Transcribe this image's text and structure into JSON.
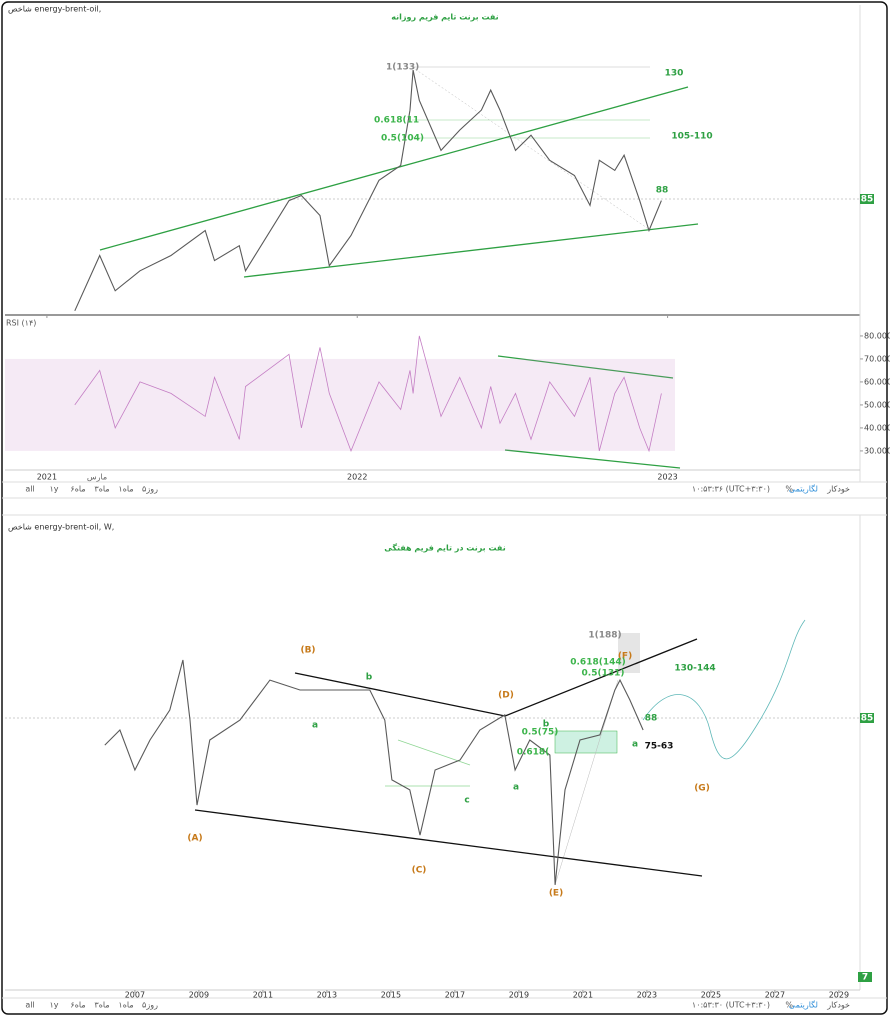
{
  "chart_data": [
    {
      "type": "line",
      "header": "شاخص energy-brent-oil,",
      "title": "نفت برنت تایم فریم روزانه",
      "color": "#5a5a5a",
      "x": [
        2021.09,
        2021.17,
        2021.22,
        2021.3,
        2021.4,
        2021.51,
        2021.54,
        2021.62,
        2021.64,
        2021.78,
        2021.82,
        2021.88,
        2021.91,
        2021.98,
        2022.07,
        2022.14,
        2022.17,
        2022.18,
        2022.2,
        2022.27,
        2022.33,
        2022.4,
        2022.43,
        2022.46,
        2022.51,
        2022.56,
        2022.62,
        2022.7,
        2022.75,
        2022.78,
        2022.83,
        2022.86,
        2022.91,
        2022.94,
        2022.98
      ],
      "values": [
        45.5,
        65.1,
        52.6,
        59.7,
        65.1,
        74.0,
        63.3,
        68.6,
        59.7,
        84.6,
        86.4,
        79.3,
        61.5,
        72.2,
        91.8,
        97.1,
        116.7,
        130.9,
        120.2,
        102.4,
        109.6,
        116.7,
        123.8,
        116.7,
        102.4,
        107.8,
        98.9,
        93.5,
        82.9,
        98.9,
        95.3,
        100.7,
        84.6,
        74.0,
        84.6
      ],
      "xlim": [
        2020.865,
        2023.62
      ],
      "xticks": [
        2021,
        2022,
        2023
      ],
      "ylim": [
        44,
        154
      ],
      "month_label": "مارس",
      "rsi": {
        "label": "RSI (۱۴)",
        "color": "#c47ec4",
        "band": [
          30,
          70
        ],
        "values": [
          50,
          65,
          40,
          60,
          55,
          45,
          62,
          35,
          58,
          72,
          40,
          75,
          55,
          30,
          60,
          48,
          65,
          55,
          80,
          45,
          62,
          40,
          58,
          42,
          55,
          35,
          60,
          45,
          62,
          30,
          55,
          62,
          40,
          30,
          55
        ],
        "ylim": [
          21.7,
          87.8
        ],
        "yticks": [
          {
            "value": 30,
            "label": "30.0000"
          },
          {
            "value": 40,
            "label": "40.0000"
          },
          {
            "value": 50,
            "label": "50.0000"
          },
          {
            "value": 60,
            "label": "60.0000"
          },
          {
            "value": 70,
            "label": "70.0000"
          },
          {
            "value": 80,
            "label": "80.0000"
          }
        ]
      },
      "annotations": [
        {
          "text": "1(133)",
          "color": "#888888"
        },
        {
          "text": "0.618(11",
          "color": "#3cb44b"
        },
        {
          "text": "0.5(104)",
          "color": "#3cb44b"
        },
        {
          "text": "130",
          "color": "#2ea043"
        },
        {
          "text": "105-110",
          "color": "#2ea043"
        },
        {
          "text": "88",
          "color": "#2ea043"
        },
        {
          "text": "85",
          "color": "#ffffff"
        }
      ],
      "toolbar_left": [
        "روز۵",
        "۱ماه",
        "۳ماه",
        "۶ماه",
        "۱y",
        "all"
      ],
      "toolbar_right": [
        "۱۰:۵۳:۳۶ (UTC+۳:۳۰)",
        "%",
        "لگاریتمی",
        "خودکار"
      ]
    },
    {
      "type": "line",
      "header": "شاخص energy-brent-oil, W,",
      "title": "نفت برنت در تایم فریم هفتگی",
      "color": "#5a5a5a",
      "log": true,
      "x": [
        2006.06,
        2006.53,
        2007.0,
        2007.47,
        2008.09,
        2008.5,
        2008.72,
        2008.94,
        2009.34,
        2010.28,
        2011.22,
        2012.16,
        2013.09,
        2014.34,
        2014.81,
        2015.03,
        2015.59,
        2015.91,
        2016.38,
        2017.16,
        2017.78,
        2018.56,
        2018.88,
        2019.34,
        2019.97,
        2020.13,
        2020.44,
        2020.91,
        2021.53,
        2022.0,
        2022.16,
        2022.47,
        2022.88
      ],
      "values": [
        66.2,
        76.4,
        52.3,
        69.5,
        92.3,
        148.3,
        83.9,
        37.5,
        69.5,
        83.9,
        122.6,
        111.6,
        111.6,
        111.6,
        83.9,
        47.6,
        43.3,
        28.2,
        52.3,
        57.5,
        76.4,
        88.1,
        52.3,
        69.5,
        60.3,
        17.6,
        43.3,
        69.5,
        72.9,
        111.6,
        122.6,
        101.5,
        76.4
      ],
      "xlim": [
        2002.94,
        2029.66
      ],
      "xticks": [
        2007,
        2009,
        2011,
        2013,
        2015,
        2017,
        2019,
        2021,
        2023,
        2025,
        2027,
        2029
      ],
      "ylim": [
        6.5,
        586
      ],
      "annotations": [
        {
          "text": "(A)",
          "color": "#c77a1a"
        },
        {
          "text": "(B)",
          "color": "#c77a1a"
        },
        {
          "text": "(C)",
          "color": "#c77a1a"
        },
        {
          "text": "(D)",
          "color": "#c77a1a"
        },
        {
          "text": "(E)",
          "color": "#c77a1a"
        },
        {
          "text": "(F)",
          "color": "#c77a1a"
        },
        {
          "text": "(G)",
          "color": "#c77a1a"
        },
        {
          "text": "a",
          "color": "#2ea043"
        },
        {
          "text": "b",
          "color": "#2ea043"
        },
        {
          "text": "c",
          "color": "#2ea043"
        },
        {
          "text": "a",
          "color": "#2ea043"
        },
        {
          "text": "b",
          "color": "#2ea043"
        },
        {
          "text": "a",
          "color": "#2ea043"
        },
        {
          "text": "1(188)",
          "color": "#888888"
        },
        {
          "text": "0.618(144)",
          "color": "#3cb44b"
        },
        {
          "text": "0.5(131)",
          "color": "#3cb44b"
        },
        {
          "text": "0.5(75)",
          "color": "#3cb44b"
        },
        {
          "text": "0.618(",
          "color": "#3cb44b"
        },
        {
          "text": "130-144",
          "color": "#2ea043"
        },
        {
          "text": "88",
          "color": "#2ea043"
        },
        {
          "text": "75-63",
          "color": "#111111"
        },
        {
          "text": "85",
          "color": "#ffffff"
        },
        {
          "text": "7",
          "color": "#ffffff"
        }
      ],
      "toolbar_left": [
        "روز۵",
        "۱ماه",
        "۳ماه",
        "۶ماه",
        "۱y",
        "all"
      ],
      "toolbar_right": [
        "۱۰:۵۳:۳۰ (UTC+۳:۳۰)",
        "%",
        "لگاریتمی",
        "خودکار"
      ]
    }
  ]
}
